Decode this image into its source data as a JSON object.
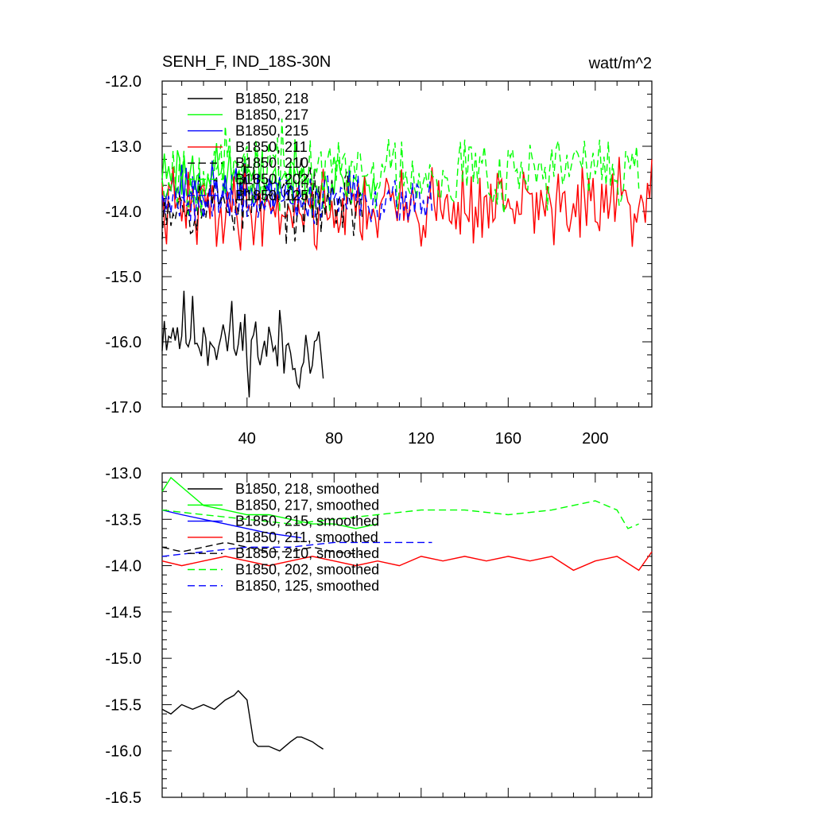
{
  "chart_data": [
    {
      "type": "line",
      "title": "SENH_F, IND_18S-30N",
      "units": "watt/m^2",
      "xlim": [
        1,
        226
      ],
      "ylim": [
        -17.0,
        -12.0
      ],
      "xticks": [
        40,
        80,
        120,
        160,
        200
      ],
      "xtick_labels": [
        "40",
        "80",
        "120",
        "160",
        "200"
      ],
      "yticks": [
        -12.0,
        -13.0,
        -14.0,
        -15.0,
        -16.0,
        -17.0
      ],
      "ytick_labels": [
        "-12.0",
        "-13.0",
        "-14.0",
        "-15.0",
        "-16.0",
        "-17.0"
      ],
      "legend": [
        "B1850, 218",
        "B1850, 217",
        "B1850, 215",
        "B1850, 211",
        "B1850, 210",
        "B1850, 202",
        "B1850, 125"
      ],
      "series": [
        {
          "name": "B1850, 218",
          "color": "#000000",
          "dash": "solid",
          "length": 75,
          "mean": -15.75,
          "drift": -0.5,
          "amp": 0.55,
          "seed": 11
        },
        {
          "name": "B1850, 217",
          "color": "#00ff00",
          "dash": "solid",
          "length": 100,
          "mean": -13.35,
          "drift": -0.25,
          "amp": 0.4,
          "seed": 23
        },
        {
          "name": "B1850, 215",
          "color": "#0000ff",
          "dash": "solid",
          "length": 65,
          "mean": -13.6,
          "drift": -0.15,
          "amp": 0.35,
          "seed": 37
        },
        {
          "name": "B1850, 211",
          "color": "#ff0000",
          "dash": "solid",
          "length": 226,
          "mean": -13.95,
          "drift": 0.05,
          "amp": 0.55,
          "seed": 41
        },
        {
          "name": "B1850, 210",
          "color": "#000000",
          "dash": "dashed",
          "length": 93,
          "mean": -13.85,
          "drift": 0.0,
          "amp": 0.5,
          "seed": 53
        },
        {
          "name": "B1850, 202",
          "color": "#00ff00",
          "dash": "dashed",
          "length": 220,
          "mean": -13.4,
          "drift": 0.05,
          "amp": 0.55,
          "seed": 67
        },
        {
          "name": "B1850, 125",
          "color": "#0000ff",
          "dash": "dashed",
          "length": 125,
          "mean": -13.8,
          "drift": 0.0,
          "amp": 0.35,
          "seed": 79
        }
      ]
    },
    {
      "type": "line",
      "title": "",
      "xlim": [
        1,
        226
      ],
      "ylim": [
        -16.5,
        -13.0
      ],
      "yticks": [
        -13.0,
        -13.5,
        -14.0,
        -14.5,
        -15.0,
        -15.5,
        -16.0,
        -16.5
      ],
      "ytick_labels": [
        "-13.0",
        "-13.5",
        "-14.0",
        "-14.5",
        "-15.0",
        "-15.5",
        "-16.0",
        "-16.5"
      ],
      "legend": [
        "B1850, 218, smoothed",
        "B1850, 217, smoothed",
        "B1850, 215, smoothed",
        "B1850, 211, smoothed",
        "B1850, 210, smoothed",
        "B1850, 202, smoothed",
        "B1850, 125, smoothed"
      ],
      "series": [
        {
          "name": "B1850, 218, smoothed",
          "color": "#000000",
          "dash": "solid",
          "x": [
            1,
            5,
            10,
            15,
            20,
            25,
            30,
            34,
            36,
            40,
            43,
            45,
            50,
            55,
            60,
            63,
            65,
            70,
            73,
            75
          ],
          "y": [
            -15.55,
            -15.6,
            -15.5,
            -15.55,
            -15.5,
            -15.55,
            -15.45,
            -15.4,
            -15.35,
            -15.45,
            -15.9,
            -15.95,
            -15.95,
            -16.0,
            -15.9,
            -15.85,
            -15.85,
            -15.9,
            -15.95,
            -15.98
          ]
        },
        {
          "name": "B1850, 217, smoothed",
          "color": "#00ff00",
          "dash": "solid",
          "x": [
            1,
            5,
            10,
            15,
            20,
            30,
            40,
            50,
            60,
            70,
            80,
            90,
            100
          ],
          "y": [
            -13.2,
            -13.05,
            -13.15,
            -13.25,
            -13.35,
            -13.4,
            -13.45,
            -13.45,
            -13.5,
            -13.55,
            -13.55,
            -13.6,
            -13.55
          ]
        },
        {
          "name": "B1850, 215, smoothed",
          "color": "#0000ff",
          "dash": "solid",
          "x": [
            1,
            10,
            20,
            30,
            40,
            50,
            65
          ],
          "y": [
            -13.4,
            -13.45,
            -13.5,
            -13.55,
            -13.6,
            -13.65,
            -13.7
          ]
        },
        {
          "name": "B1850, 211, smoothed",
          "color": "#ff0000",
          "dash": "solid",
          "x": [
            1,
            10,
            20,
            30,
            40,
            50,
            60,
            70,
            80,
            90,
            100,
            110,
            120,
            130,
            140,
            150,
            160,
            170,
            180,
            190,
            200,
            210,
            220,
            226
          ],
          "y": [
            -13.95,
            -14.0,
            -13.95,
            -13.9,
            -13.95,
            -14.0,
            -13.95,
            -13.9,
            -13.95,
            -14.0,
            -13.95,
            -14.0,
            -13.9,
            -13.95,
            -13.9,
            -13.95,
            -13.9,
            -13.95,
            -13.9,
            -14.05,
            -13.95,
            -13.9,
            -14.05,
            -13.85
          ]
        },
        {
          "name": "B1850, 210, smoothed",
          "color": "#000000",
          "dash": "dashed",
          "x": [
            1,
            10,
            20,
            30,
            40,
            50,
            60,
            70,
            80,
            93
          ],
          "y": [
            -13.8,
            -13.85,
            -13.8,
            -13.75,
            -13.8,
            -13.85,
            -13.85,
            -13.8,
            -13.85,
            -13.88
          ]
        },
        {
          "name": "B1850, 202, smoothed",
          "color": "#00ff00",
          "dash": "dashed",
          "x": [
            1,
            20,
            40,
            60,
            80,
            100,
            120,
            140,
            160,
            180,
            200,
            210,
            215,
            220
          ],
          "y": [
            -13.4,
            -13.45,
            -13.5,
            -13.55,
            -13.5,
            -13.45,
            -13.4,
            -13.4,
            -13.45,
            -13.4,
            -13.3,
            -13.4,
            -13.6,
            -13.55
          ]
        },
        {
          "name": "B1850, 125, smoothed",
          "color": "#0000ff",
          "dash": "dashed",
          "x": [
            1,
            20,
            40,
            60,
            80,
            100,
            125
          ],
          "y": [
            -13.9,
            -13.85,
            -13.8,
            -13.8,
            -13.75,
            -13.75,
            -13.75
          ]
        }
      ]
    }
  ]
}
